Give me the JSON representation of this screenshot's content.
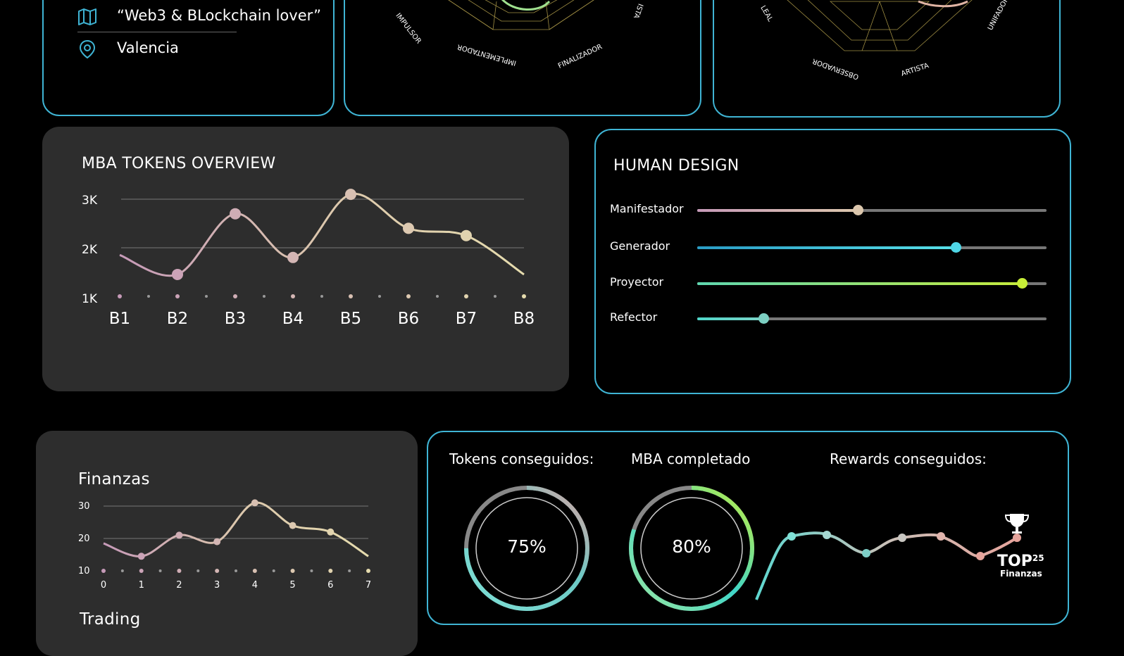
{
  "profile": {
    "items": [
      {
        "icon": "map-icon",
        "text": "“Web3 & BLockchain lover”"
      },
      {
        "icon": "location-pin-icon",
        "text": "Valencia"
      }
    ]
  },
  "radar_left": {
    "labels": [
      "IMPULSOR",
      "IMPLEMENTADOR",
      "FINALIZADOR",
      "ISTA"
    ]
  },
  "radar_right": {
    "labels": [
      "LEAL",
      "OBSERVADOR",
      "ARTISTA",
      "UNIFADOR"
    ]
  },
  "tokens_overview": {
    "title": "MBA TOKENS OVERVIEW",
    "y_ticks": [
      "3K",
      "2K",
      "1K"
    ],
    "x_labels": [
      "B1",
      "B2",
      "B3",
      "B4",
      "B5",
      "B6",
      "B7",
      "B8"
    ]
  },
  "human_design": {
    "title": "HUMAN DESIGN",
    "items": [
      {
        "label": "Manifestador",
        "level": 0.46,
        "from": "#c69ab8",
        "to": "#dcc7ad",
        "knob": "#dcc7ad"
      },
      {
        "label": "Generador",
        "level": 0.74,
        "from": "#2a9cc5",
        "to": "#57e0e8",
        "knob": "#4fd6e6"
      },
      {
        "label": "Proyector",
        "level": 0.93,
        "from": "#5fd7b0",
        "to": "#c6ec3d",
        "knob": "#c8ef38"
      },
      {
        "label": "Refector",
        "level": 0.19,
        "from": "#4fd6c9",
        "to": "#7ad2c6",
        "knob": "#7ccfc2"
      }
    ]
  },
  "finanzas": {
    "title": "Finanzas",
    "y_ticks": [
      "30",
      "20",
      "10"
    ],
    "x_labels": [
      "0",
      "1",
      "2",
      "3",
      "4",
      "5",
      "6",
      "7"
    ],
    "next_title": "Trading"
  },
  "stats": {
    "tokens_label": "Tokens conseguidos:",
    "tokens_value": "75%",
    "tokens_level": 0.75,
    "mba_label": "MBA completado",
    "mba_value": "80%",
    "mba_level": 0.8,
    "rewards_label": "Rewards conseguidos:",
    "badge_top": "TOP",
    "badge_rank": "25",
    "badge_sub": "Finanzas"
  },
  "chart_data": [
    {
      "type": "line",
      "title": "MBA TOKENS OVERVIEW",
      "categories": [
        "B1",
        "B2",
        "B3",
        "B4",
        "B5",
        "B6",
        "B7",
        "B8"
      ],
      "values": [
        1850,
        1450,
        2700,
        1800,
        3100,
        2400,
        2250,
        1450
      ],
      "ylim": [
        1000,
        3000
      ],
      "y_ticks": [
        "1K",
        "2K",
        "3K"
      ],
      "grid": true
    },
    {
      "type": "line",
      "title": "Finanzas",
      "x": [
        0,
        1,
        2,
        3,
        4,
        5,
        6,
        7
      ],
      "values": [
        18.5,
        14.5,
        21,
        19,
        31,
        24,
        22,
        14.5
      ],
      "ylim": [
        10,
        30
      ],
      "grid": true
    }
  ]
}
